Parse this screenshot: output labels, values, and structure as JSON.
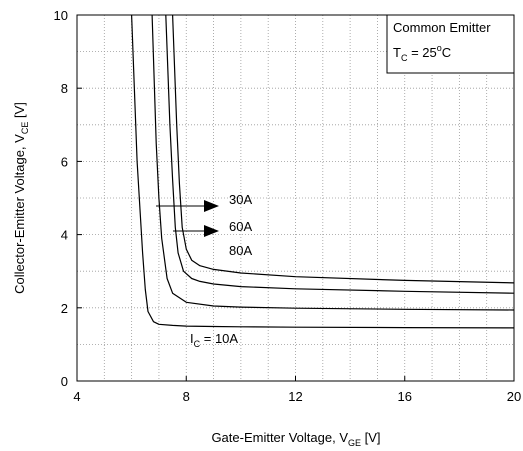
{
  "chart_data": {
    "type": "line",
    "xlabel": {
      "main": "Gate-Emitter Voltage, V",
      "sub": "GE",
      "unit": " [V]"
    },
    "ylabel": {
      "main": "Collector-Emitter Voltage, V",
      "sub": "CE",
      "unit": " [V]"
    },
    "xlim": [
      4,
      20
    ],
    "ylim": [
      0,
      10
    ],
    "xticks": [
      4,
      8,
      12,
      16,
      20
    ],
    "yticks": [
      0,
      2,
      4,
      6,
      8,
      10
    ],
    "grid": "dotted",
    "legend_box": {
      "line1": "Common Emitter",
      "line2_prefix": "T",
      "line2_sub": "C",
      "line2_value": " = 25",
      "line2_deg": "o",
      "line2_unit": "C"
    },
    "series": [
      {
        "name": "10A",
        "x": [
          6.0,
          6.2,
          6.4,
          6.5,
          6.6,
          6.8,
          7.0,
          7.5,
          8.0,
          9.0,
          10.0,
          12.0,
          16.0,
          20.0
        ],
        "y": [
          10.0,
          6.0,
          3.5,
          2.5,
          1.9,
          1.62,
          1.55,
          1.52,
          1.5,
          1.49,
          1.48,
          1.47,
          1.46,
          1.45
        ]
      },
      {
        "name": "30A",
        "x": [
          6.75,
          6.9,
          7.0,
          7.1,
          7.3,
          7.5,
          8.0,
          9.0,
          10.0,
          12.0,
          16.0,
          20.0
        ],
        "y": [
          10.0,
          6.5,
          5.0,
          3.9,
          2.8,
          2.4,
          2.15,
          2.05,
          2.02,
          1.99,
          1.96,
          1.94
        ]
      },
      {
        "name": "60A",
        "x": [
          7.25,
          7.4,
          7.5,
          7.6,
          7.7,
          7.9,
          8.2,
          8.5,
          9.0,
          10.0,
          12.0,
          16.0,
          20.0
        ],
        "y": [
          10.0,
          7.0,
          5.5,
          4.2,
          3.5,
          3.0,
          2.8,
          2.72,
          2.65,
          2.58,
          2.52,
          2.45,
          2.4
        ]
      },
      {
        "name": "80A",
        "x": [
          7.5,
          7.65,
          7.75,
          7.85,
          8.0,
          8.2,
          8.5,
          9.0,
          10.0,
          12.0,
          16.0,
          20.0
        ],
        "y": [
          10.0,
          7.0,
          5.4,
          4.2,
          3.6,
          3.3,
          3.15,
          3.05,
          2.95,
          2.85,
          2.75,
          2.68
        ]
      }
    ],
    "annotations": [
      {
        "text": "30A"
      },
      {
        "text": "60A"
      },
      {
        "text": "80A"
      },
      {
        "prefix": "I",
        "sub": "C",
        "text": " = 10A"
      }
    ]
  }
}
